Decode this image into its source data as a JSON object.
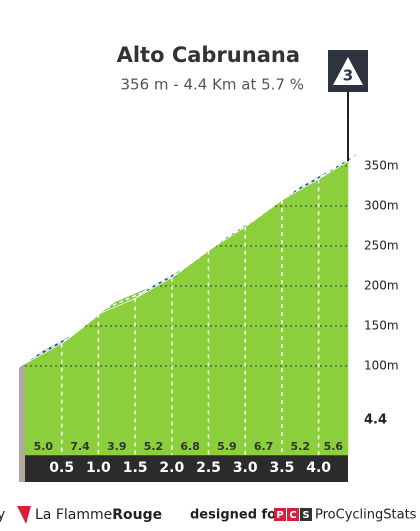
{
  "chart_data": {
    "type": "climb-profile",
    "title": "Alto Cabrunana",
    "subtitle": "356 m - 4.4 Km at 5.7 %",
    "category": "3",
    "x": [
      0,
      0.5,
      1,
      1.5,
      2,
      2.5,
      3,
      3.5,
      4
    ],
    "values": [
      5.0,
      7.4,
      3.9,
      5.2,
      6.8,
      5.9,
      6.7,
      5.2,
      5.6
    ],
    "value_labels": [
      "5.0",
      "7.4",
      "3.9",
      "5.2",
      "6.8",
      "5.9",
      "6.7",
      "5.2",
      "5.6"
    ],
    "segment_colors": [
      "#1f5a8a",
      "#d8203a",
      "#7dc83a",
      "#1f5a8a",
      "#d8203a",
      "#1f5a8a",
      "#d8203a",
      "#1f5a8a",
      "#1f5a8a"
    ],
    "start_elevation": 103,
    "fill_color": "#8ccf3c",
    "xlim": [
      0,
      4.4
    ],
    "xticks": [
      0.5,
      {
        "value": 1,
        "label": "1.0"
      },
      1.5,
      {
        "value": 2,
        "label": "2.0"
      },
      2.5,
      {
        "value": 3,
        "label": "3.0"
      },
      3.5,
      {
        "value": 4,
        "label": "4.0"
      }
    ],
    "ylim": [
      50,
      400
    ],
    "yticks": [
      {
        "value": 100,
        "label": "100m"
      },
      {
        "value": 150,
        "label": "150m"
      },
      {
        "value": 200,
        "label": "200m"
      },
      {
        "value": 250,
        "label": "250m"
      },
      {
        "value": 300,
        "label": "300m"
      },
      {
        "value": 350,
        "label": "350m"
      }
    ],
    "grid": true
  },
  "footer": {
    "by": "y",
    "brand_a": "La Flamme",
    "brand_b": "Rouge",
    "designed": "designed for",
    "logo_letters": [
      "P",
      "C",
      "S"
    ],
    "site": "ProCyclingStats"
  }
}
